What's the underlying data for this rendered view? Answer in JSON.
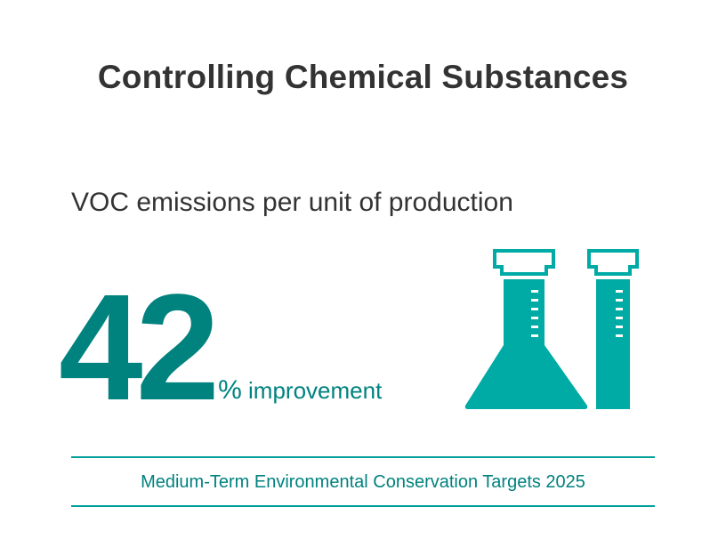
{
  "heading": "Controlling Chemical Substances",
  "metric": {
    "label": "VOC emissions per unit of production",
    "value": "42",
    "percent_sign": "%",
    "suffix": "improvement"
  },
  "icons": [
    "erlenmeyer-flask-icon",
    "test-tube-icon"
  ],
  "footer": "Medium-Term Environmental Conservation Targets 2025",
  "colors": {
    "text": "#333333",
    "accent_dark": "#00827f",
    "accent": "#00aaa5"
  }
}
